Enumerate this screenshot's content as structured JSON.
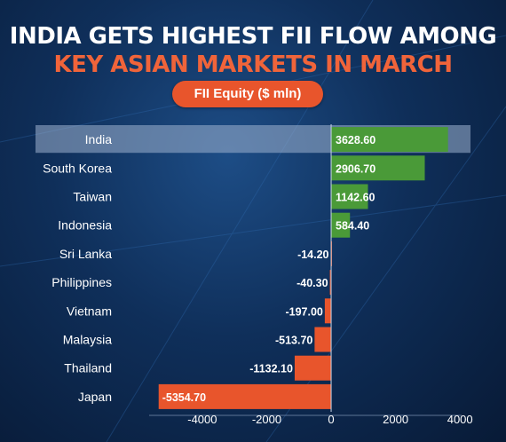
{
  "header": {
    "title_line1": "INDIA GETS HIGHEST FII FLOW AMONG",
    "title_line2": "KEY ASIAN MARKETS IN MARCH",
    "subtitle_pill": "FII Equity ($ mln)"
  },
  "colors": {
    "positive": "#4a9a38",
    "negative": "#e8552c",
    "highlight": "#9fb3cf",
    "title_accent": "#f0643a"
  },
  "chart_data": {
    "type": "bar",
    "orientation": "horizontal",
    "title": "INDIA GETS HIGHEST FII FLOW AMONG KEY ASIAN MARKETS IN MARCH",
    "subtitle": "FII Equity ($ mln)",
    "categories": [
      "India",
      "South Korea",
      "Taiwan",
      "Indonesia",
      "Sri Lanka",
      "Philippines",
      "Vietnam",
      "Malaysia",
      "Thailand",
      "Japan"
    ],
    "values": [
      3628.6,
      2906.7,
      1142.6,
      584.4,
      -14.2,
      -40.3,
      -197.0,
      -513.7,
      -1132.1,
      -5354.7
    ],
    "value_labels": [
      "3628.60",
      "2906.70",
      "1142.60",
      "584.40",
      "-14.20",
      "-40.30",
      "-197.00",
      "-513.70",
      "-1132.10",
      "-5354.70"
    ],
    "highlighted_category": "India",
    "xticks": [
      -4000,
      -2000,
      0,
      2000,
      4000
    ],
    "xtick_labels": [
      "-4000",
      "-2000",
      "0",
      "2000",
      "4000"
    ],
    "xlim": [
      -5650,
      4050
    ],
    "grid": false,
    "legend": "none"
  }
}
